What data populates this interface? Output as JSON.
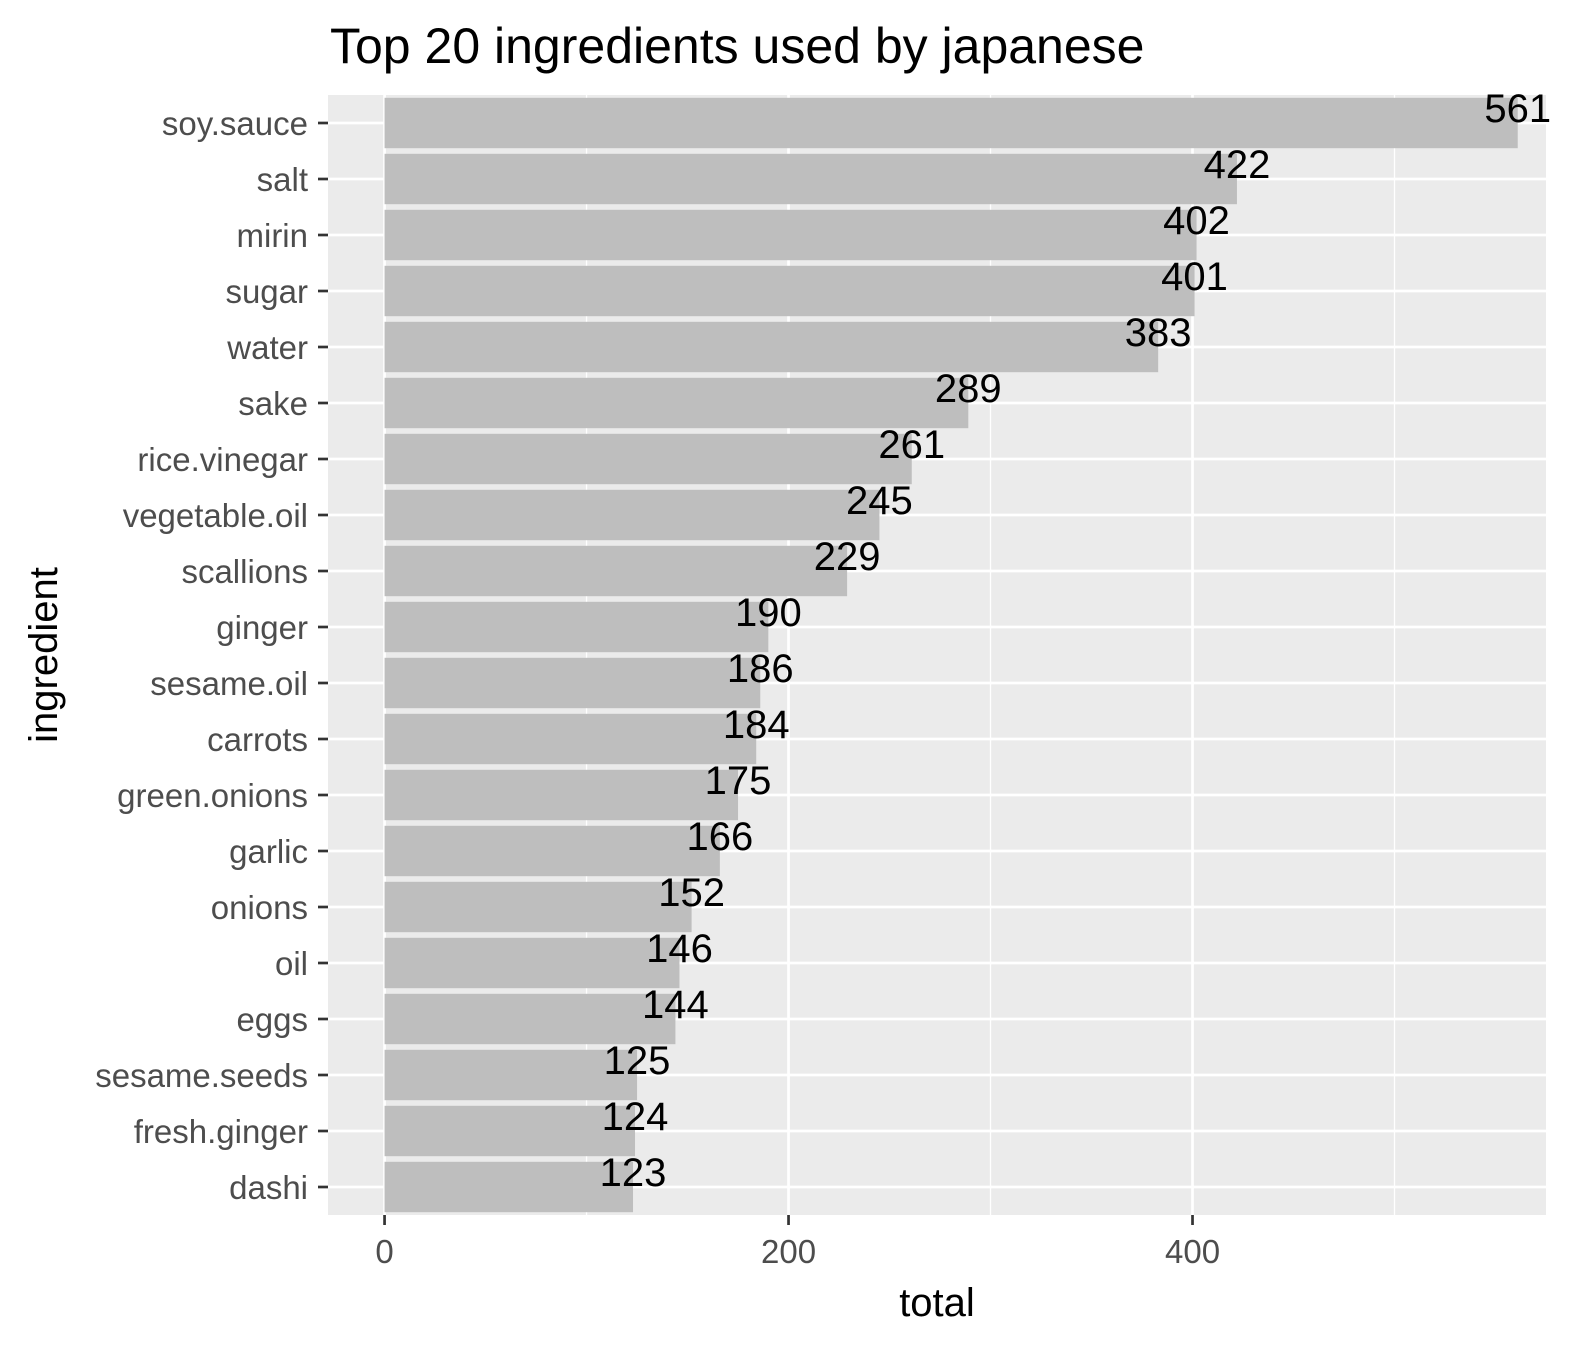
{
  "chart_data": {
    "type": "bar",
    "orientation": "horizontal",
    "title": "Top 20 ingredients used by japanese",
    "xlabel": "total",
    "ylabel": "ingredient",
    "categories": [
      "soy.sauce",
      "salt",
      "mirin",
      "sugar",
      "water",
      "sake",
      "rice.vinegar",
      "vegetable.oil",
      "scallions",
      "ginger",
      "sesame.oil",
      "carrots",
      "green.onions",
      "garlic",
      "onions",
      "oil",
      "eggs",
      "sesame.seeds",
      "fresh.ginger",
      "dashi"
    ],
    "values": [
      561,
      422,
      402,
      401,
      383,
      289,
      261,
      245,
      229,
      190,
      186,
      184,
      175,
      166,
      152,
      146,
      144,
      125,
      124,
      123
    ],
    "data_labels": [
      "561",
      "422",
      "402",
      "401",
      "383",
      "289",
      "261",
      "245",
      "229",
      "190",
      "186",
      "184",
      "175",
      "166",
      "152",
      "146",
      "144",
      "125",
      "124",
      "123"
    ],
    "xlim": [
      -28,
      575
    ],
    "x_ticks": [
      0,
      200,
      400
    ],
    "x_tick_labels": [
      "0",
      "200",
      "400"
    ],
    "x_minor_ticks": [
      100,
      300,
      500
    ],
    "grid": true,
    "colors": {
      "bar": "#bebebe",
      "panel": "#ebebeb",
      "grid": "#ffffff",
      "tick_text": "#4d4d4d",
      "text": "#000000"
    }
  }
}
